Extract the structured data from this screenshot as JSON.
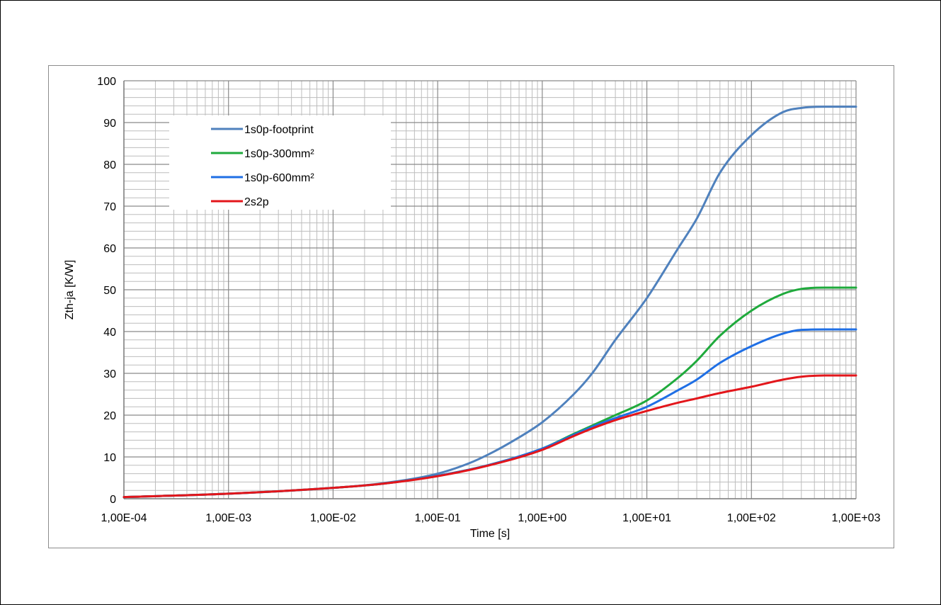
{
  "chart_data": {
    "type": "line",
    "title": "",
    "xlabel": "Time [s]",
    "ylabel": "Zth-ja [K/W]",
    "x_scale": "log",
    "xlim": [
      0.0001,
      1000
    ],
    "ylim": [
      0,
      100
    ],
    "x_tick_values": [
      0.0001,
      0.001,
      0.01,
      0.1,
      1,
      10,
      100,
      1000
    ],
    "x_tick_labels": [
      "1,00E-04",
      "1,00E-03",
      "1,00E-02",
      "1,00E-01",
      "1,00E+00",
      "1,00E+01",
      "1,00E+02",
      "1,00E+03"
    ],
    "y_tick_values": [
      0,
      10,
      20,
      30,
      40,
      50,
      60,
      70,
      80,
      90,
      100
    ],
    "y_tick_labels": [
      "0",
      "10",
      "20",
      "30",
      "40",
      "50",
      "60",
      "70",
      "80",
      "90",
      "100"
    ],
    "grid": true,
    "legend_position": "upper-left",
    "series": [
      {
        "name": "1s0p-footprint",
        "color": "#4f81bd",
        "x": [
          0.0001,
          0.001,
          0.01,
          0.03,
          0.1,
          0.2,
          0.3,
          0.5,
          1,
          2,
          3,
          5,
          10,
          20,
          30,
          50,
          100,
          200,
          300,
          500,
          1000
        ],
        "y": [
          0.4,
          1.2,
          2.6,
          3.7,
          6.0,
          8.5,
          10.5,
          13.5,
          18.3,
          25.0,
          30.0,
          38.0,
          48.0,
          60.0,
          67.0,
          78.0,
          87.0,
          92.5,
          93.5,
          93.8,
          93.8
        ]
      },
      {
        "name": "1s0p-300mm²",
        "color": "#1faa3c",
        "x": [
          0.0001,
          0.001,
          0.01,
          0.03,
          0.1,
          0.3,
          1,
          2,
          3,
          5,
          10,
          20,
          30,
          50,
          100,
          200,
          300,
          500,
          1000
        ],
        "y": [
          0.4,
          1.2,
          2.6,
          3.6,
          5.5,
          8.0,
          12.0,
          15.5,
          17.5,
          20.0,
          23.5,
          29.0,
          33.0,
          39.0,
          45.0,
          49.0,
          50.2,
          50.5,
          50.5
        ]
      },
      {
        "name": "1s0p-600mm²",
        "color": "#1f6fe5",
        "x": [
          0.0001,
          0.001,
          0.01,
          0.03,
          0.1,
          0.3,
          1,
          2,
          3,
          5,
          10,
          20,
          30,
          50,
          100,
          200,
          300,
          500,
          1000
        ],
        "y": [
          0.4,
          1.2,
          2.6,
          3.6,
          5.5,
          8.0,
          12.0,
          15.3,
          17.2,
          19.3,
          22.0,
          26.0,
          28.5,
          32.5,
          36.5,
          39.5,
          40.4,
          40.5,
          40.5
        ]
      },
      {
        "name": "2s2p",
        "color": "#e3161b",
        "x": [
          0.0001,
          0.001,
          0.01,
          0.03,
          0.1,
          0.3,
          1,
          2,
          3,
          5,
          10,
          20,
          30,
          50,
          100,
          200,
          300,
          500,
          1000
        ],
        "y": [
          0.4,
          1.2,
          2.6,
          3.6,
          5.4,
          7.9,
          11.7,
          15.0,
          16.8,
          18.8,
          21.0,
          23.0,
          24.0,
          25.3,
          26.8,
          28.5,
          29.2,
          29.5,
          29.5
        ]
      }
    ]
  }
}
